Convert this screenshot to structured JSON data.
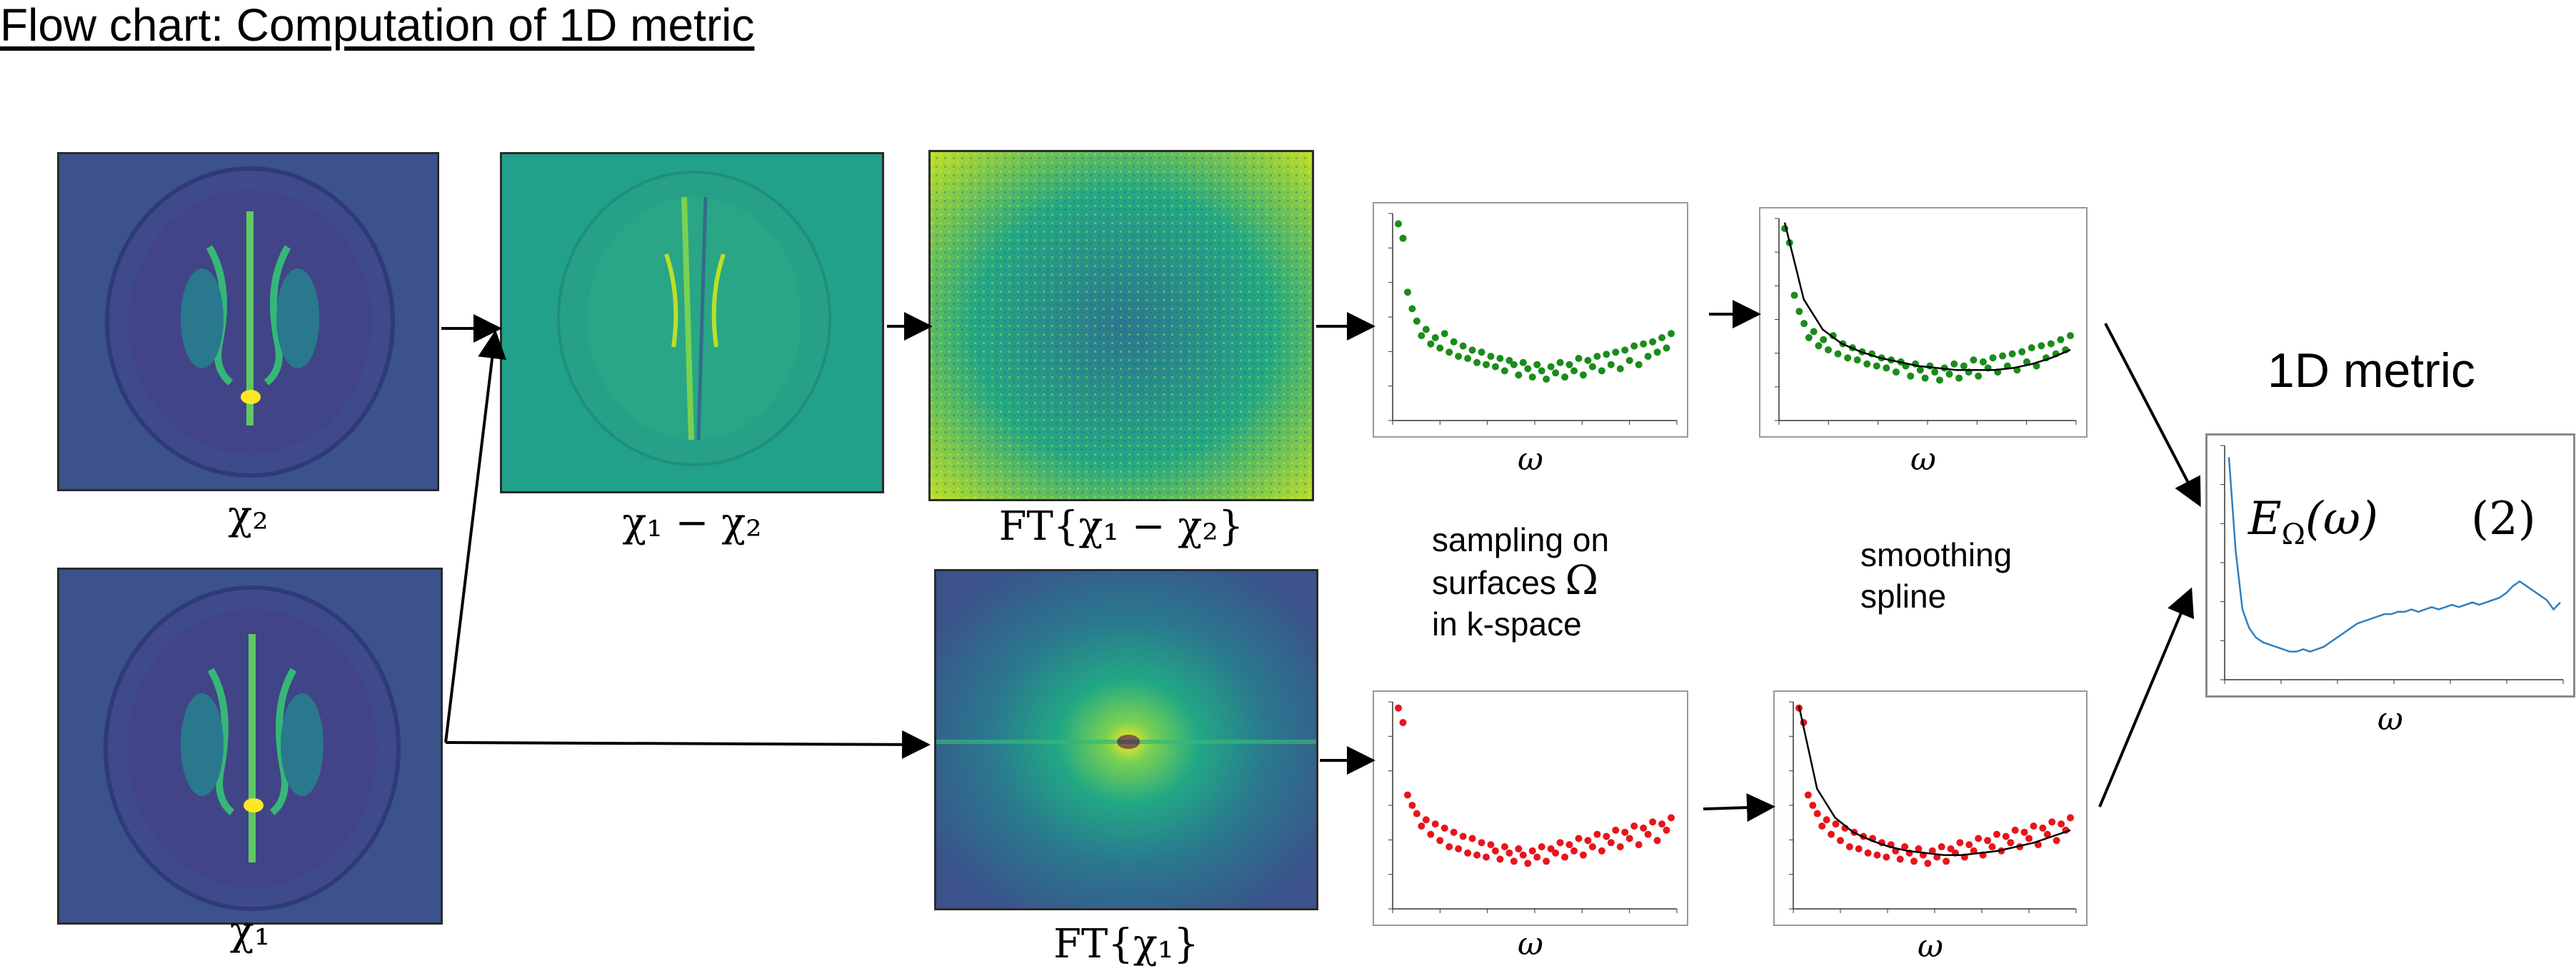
{
  "title": "Flow chart: Computation of 1D metric",
  "labels": {
    "chi2": "χ₂",
    "chi1": "χ₁",
    "diff": "χ₁ − χ₂",
    "ft_diff": "FT{χ₁ − χ₂}",
    "ft_chi1": "FT{χ₁}"
  },
  "notes": {
    "sampling_line1": "sampling on",
    "sampling_line2": "surfaces",
    "sampling_omega": "Ω",
    "sampling_line3": "in k-space",
    "smoothing_line1": "smoothing",
    "smoothing_line2": "spline"
  },
  "axis_label": "ω",
  "metric": {
    "heading": "1D metric",
    "formula": "E",
    "formula_sub": "Ω",
    "formula_arg": "(ω)",
    "eq_number": "(2)"
  },
  "colors": {
    "brain_bg": "#3b528b",
    "diff_bg": "#21a08a",
    "green_dots": "#1a8c1a",
    "red_dots": "#e8151b",
    "spline": "#000000",
    "metric_line": "#2f7fc1"
  },
  "chart_data": [
    {
      "type": "scatter",
      "name": "sampled-ft-diff",
      "xlabel": "ω",
      "x": [
        0,
        1,
        2,
        3,
        4,
        5,
        6,
        7,
        8,
        9,
        10,
        11,
        12,
        13,
        14,
        15,
        16,
        17,
        18,
        19,
        20,
        21,
        22,
        23,
        24,
        25,
        26,
        27,
        28,
        29,
        30,
        31,
        32,
        33,
        34,
        35,
        36,
        37,
        38,
        39,
        40,
        41,
        42,
        43,
        44,
        45,
        46,
        47,
        48,
        49,
        50,
        51,
        52,
        53,
        54,
        55,
        56,
        57,
        58,
        59
      ],
      "values": [
        0.95,
        0.88,
        0.62,
        0.54,
        0.48,
        0.41,
        0.44,
        0.37,
        0.4,
        0.35,
        0.42,
        0.33,
        0.38,
        0.31,
        0.36,
        0.3,
        0.34,
        0.28,
        0.33,
        0.27,
        0.31,
        0.26,
        0.3,
        0.24,
        0.29,
        0.27,
        0.22,
        0.28,
        0.25,
        0.21,
        0.27,
        0.24,
        0.2,
        0.26,
        0.23,
        0.28,
        0.21,
        0.27,
        0.24,
        0.3,
        0.22,
        0.29,
        0.26,
        0.31,
        0.24,
        0.32,
        0.27,
        0.33,
        0.25,
        0.34,
        0.29,
        0.36,
        0.27,
        0.37,
        0.31,
        0.38,
        0.33,
        0.4,
        0.35,
        0.42
      ],
      "ylim": [
        0,
        1
      ]
    },
    {
      "type": "scatter",
      "name": "smoothed-ft-diff",
      "xlabel": "ω",
      "x": [
        0,
        1,
        2,
        3,
        4,
        5,
        6,
        7,
        8,
        9,
        10,
        11,
        12,
        13,
        14,
        15,
        16,
        17,
        18,
        19,
        20,
        21,
        22,
        23,
        24,
        25,
        26,
        27,
        28,
        29,
        30,
        31,
        32,
        33,
        34,
        35,
        36,
        37,
        38,
        39,
        40,
        41,
        42,
        43,
        44,
        45,
        46,
        47,
        48,
        49,
        50,
        51,
        52,
        53,
        54,
        55,
        56,
        57,
        58,
        59
      ],
      "values": [
        0.95,
        0.88,
        0.62,
        0.54,
        0.48,
        0.41,
        0.44,
        0.37,
        0.4,
        0.35,
        0.42,
        0.33,
        0.38,
        0.31,
        0.36,
        0.3,
        0.34,
        0.28,
        0.33,
        0.27,
        0.31,
        0.26,
        0.3,
        0.24,
        0.29,
        0.27,
        0.22,
        0.28,
        0.25,
        0.21,
        0.27,
        0.24,
        0.2,
        0.26,
        0.23,
        0.28,
        0.21,
        0.27,
        0.24,
        0.3,
        0.22,
        0.29,
        0.26,
        0.31,
        0.24,
        0.32,
        0.27,
        0.33,
        0.25,
        0.34,
        0.29,
        0.36,
        0.27,
        0.37,
        0.31,
        0.38,
        0.33,
        0.4,
        0.35,
        0.42
      ],
      "spline": [
        0.98,
        0.6,
        0.45,
        0.38,
        0.34,
        0.31,
        0.29,
        0.27,
        0.26,
        0.25,
        0.25,
        0.25,
        0.26,
        0.28,
        0.31,
        0.35
      ],
      "ylim": [
        0,
        1
      ]
    },
    {
      "type": "scatter",
      "name": "sampled-ft-chi1",
      "xlabel": "ω",
      "x": [
        0,
        1,
        2,
        3,
        4,
        5,
        6,
        7,
        8,
        9,
        10,
        11,
        12,
        13,
        14,
        15,
        16,
        17,
        18,
        19,
        20,
        21,
        22,
        23,
        24,
        25,
        26,
        27,
        28,
        29,
        30,
        31,
        32,
        33,
        34,
        35,
        36,
        37,
        38,
        39,
        40,
        41,
        42,
        43,
        44,
        45,
        46,
        47,
        48,
        49,
        50,
        51,
        52,
        53,
        54,
        55,
        56,
        57,
        58,
        59
      ],
      "values": [
        0.97,
        0.9,
        0.55,
        0.5,
        0.46,
        0.4,
        0.43,
        0.36,
        0.41,
        0.33,
        0.39,
        0.3,
        0.37,
        0.29,
        0.35,
        0.27,
        0.34,
        0.26,
        0.32,
        0.25,
        0.31,
        0.28,
        0.24,
        0.3,
        0.27,
        0.23,
        0.29,
        0.26,
        0.22,
        0.28,
        0.25,
        0.3,
        0.23,
        0.29,
        0.27,
        0.32,
        0.25,
        0.31,
        0.28,
        0.34,
        0.26,
        0.33,
        0.3,
        0.36,
        0.28,
        0.35,
        0.32,
        0.38,
        0.3,
        0.37,
        0.34,
        0.4,
        0.31,
        0.39,
        0.36,
        0.42,
        0.33,
        0.41,
        0.38,
        0.44
      ],
      "ylim": [
        0,
        1
      ]
    },
    {
      "type": "scatter",
      "name": "smoothed-ft-chi1",
      "xlabel": "ω",
      "x": [
        0,
        1,
        2,
        3,
        4,
        5,
        6,
        7,
        8,
        9,
        10,
        11,
        12,
        13,
        14,
        15,
        16,
        17,
        18,
        19,
        20,
        21,
        22,
        23,
        24,
        25,
        26,
        27,
        28,
        29,
        30,
        31,
        32,
        33,
        34,
        35,
        36,
        37,
        38,
        39,
        40,
        41,
        42,
        43,
        44,
        45,
        46,
        47,
        48,
        49,
        50,
        51,
        52,
        53,
        54,
        55,
        56,
        57,
        58,
        59
      ],
      "values": [
        0.97,
        0.9,
        0.55,
        0.5,
        0.46,
        0.4,
        0.43,
        0.36,
        0.41,
        0.33,
        0.39,
        0.3,
        0.37,
        0.29,
        0.35,
        0.27,
        0.34,
        0.26,
        0.32,
        0.25,
        0.31,
        0.28,
        0.24,
        0.3,
        0.27,
        0.23,
        0.29,
        0.26,
        0.22,
        0.28,
        0.25,
        0.3,
        0.23,
        0.29,
        0.27,
        0.32,
        0.25,
        0.31,
        0.28,
        0.34,
        0.26,
        0.33,
        0.3,
        0.36,
        0.28,
        0.35,
        0.32,
        0.38,
        0.3,
        0.37,
        0.34,
        0.4,
        0.31,
        0.39,
        0.36,
        0.42,
        0.33,
        0.41,
        0.38,
        0.44
      ],
      "spline": [
        0.98,
        0.58,
        0.44,
        0.37,
        0.33,
        0.3,
        0.28,
        0.27,
        0.26,
        0.26,
        0.27,
        0.28,
        0.3,
        0.32,
        0.35,
        0.38
      ],
      "ylim": [
        0,
        1
      ]
    },
    {
      "type": "line",
      "name": "1d-metric",
      "xlabel": "ω",
      "values": [
        0.95,
        0.55,
        0.3,
        0.22,
        0.18,
        0.16,
        0.15,
        0.14,
        0.13,
        0.12,
        0.12,
        0.13,
        0.12,
        0.13,
        0.14,
        0.16,
        0.18,
        0.2,
        0.22,
        0.24,
        0.25,
        0.26,
        0.27,
        0.28,
        0.28,
        0.29,
        0.29,
        0.3,
        0.29,
        0.3,
        0.31,
        0.3,
        0.31,
        0.32,
        0.31,
        0.32,
        0.33,
        0.32,
        0.33,
        0.34,
        0.35,
        0.37,
        0.4,
        0.42,
        0.4,
        0.38,
        0.36,
        0.34,
        0.3,
        0.33
      ],
      "ylim": [
        0,
        1
      ]
    }
  ]
}
